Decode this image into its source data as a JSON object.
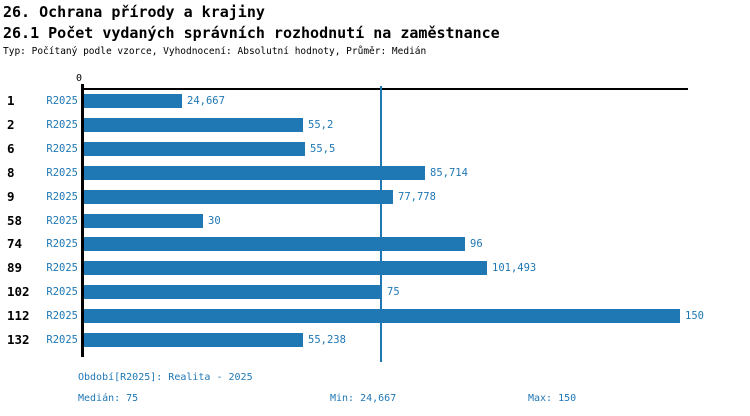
{
  "header": {
    "title": "26. Ochrana přírody a krajiny",
    "subtitle": "26.1 Počet vydaných správních rozhodnutí na zaměstnance",
    "meta": "Typ: Počítaný podle vzorce, Vyhodnocení: Absolutní hodnoty, Průměr: Medián"
  },
  "chart_data": {
    "type": "bar",
    "orientation": "horizontal",
    "title": "26.1 Počet vydaných správních rozhodnutí na zaměstnance",
    "series_label": "R2025",
    "categories": [
      "1",
      "2",
      "6",
      "8",
      "9",
      "58",
      "74",
      "89",
      "102",
      "112",
      "132"
    ],
    "values": [
      24.667,
      55.2,
      55.5,
      85.714,
      77.778,
      30,
      96,
      101.493,
      75,
      150,
      55.238
    ],
    "value_labels": [
      "24,667",
      "55,2",
      "55,5",
      "85,714",
      "77,778",
      "30",
      "96",
      "101,493",
      "75",
      "150",
      "55,238"
    ],
    "xlim": [
      0,
      150
    ],
    "x_tick_labels": [
      "0"
    ],
    "median_value": 75,
    "min_value": 24.667,
    "max_value": 150,
    "bar_color": "#1f77b4",
    "axis_color": "#000000",
    "grid": false,
    "legend_position": "none"
  },
  "footer": {
    "period": "Období[R2025]: Realita - 2025",
    "median": "Medián: 75",
    "min": "Min: 24,667",
    "max": "Max: 150"
  }
}
